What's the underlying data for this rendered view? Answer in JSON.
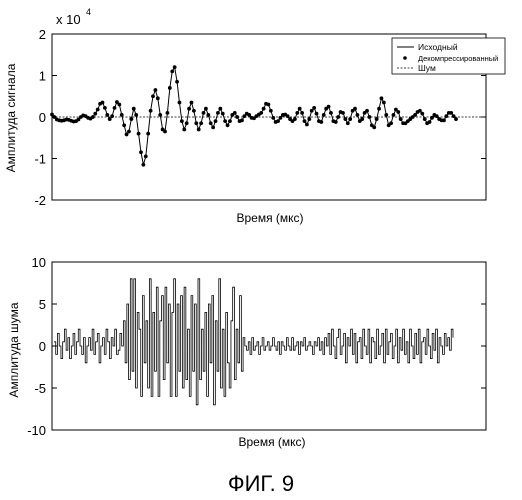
{
  "figure_caption": "ФИГ. 9",
  "chart_data": [
    {
      "type": "line",
      "exponent_label_base": "x 10",
      "exponent_label_power": "4",
      "xlabel": "Время (мкс)",
      "ylabel": "Амплитуда сигнала",
      "ylim": [
        -2,
        2
      ],
      "yticks": [
        "2",
        "1",
        "0",
        "-1",
        "-2"
      ],
      "ytick_values": [
        2,
        1,
        0,
        -1,
        -2
      ],
      "legend_position": "top-right",
      "legend": [
        {
          "label": "Исходный",
          "style": "solid"
        },
        {
          "label": "Декомпрессированный",
          "style": "dots"
        },
        {
          "label": "Шум",
          "style": "dashed"
        }
      ],
      "series": [
        {
          "name": "Исходный",
          "values": [
            0.06,
            0.0,
            -0.06,
            -0.08,
            -0.09,
            -0.08,
            -0.06,
            -0.07,
            -0.09,
            -0.11,
            -0.1,
            -0.06,
            0.0,
            0.04,
            0.02,
            -0.02,
            -0.04,
            0.0,
            0.08,
            0.18,
            0.32,
            0.35,
            0.22,
            0.05,
            -0.05,
            0.02,
            0.22,
            0.36,
            0.3,
            0.05,
            -0.2,
            -0.42,
            -0.35,
            -0.05,
            0.2,
            0.05,
            -0.4,
            -0.85,
            -1.15,
            -0.95,
            -0.4,
            0.15,
            0.5,
            0.65,
            0.45,
            0.05,
            -0.3,
            -0.35,
            0.1,
            0.7,
            1.1,
            1.2,
            0.85,
            0.35,
            -0.1,
            -0.3,
            -0.15,
            0.2,
            0.35,
            0.15,
            -0.15,
            -0.3,
            -0.15,
            0.1,
            0.2,
            0.05,
            -0.15,
            -0.25,
            -0.1,
            0.1,
            0.2,
            0.08,
            -0.1,
            -0.2,
            -0.1,
            0.05,
            0.1,
            0.0,
            -0.1,
            -0.08,
            0.02,
            0.08,
            0.05,
            -0.02,
            -0.03,
            0.02,
            0.06,
            0.1,
            0.2,
            0.32,
            0.3,
            0.15,
            -0.02,
            -0.12,
            -0.1,
            -0.02,
            0.05,
            0.06,
            0.02,
            -0.05,
            -0.1,
            -0.05,
            0.1,
            0.2,
            0.1,
            -0.1,
            -0.18,
            -0.05,
            0.15,
            0.22,
            0.08,
            -0.1,
            -0.12,
            0.05,
            0.2,
            0.25,
            0.1,
            -0.1,
            -0.12,
            0.0,
            0.12,
            0.1,
            -0.05,
            -0.15,
            -0.05,
            0.15,
            0.2,
            0.05,
            -0.1,
            -0.05,
            0.1,
            0.15,
            0.0,
            -0.2,
            -0.25,
            -0.05,
            0.2,
            0.45,
            0.35,
            0.05,
            -0.2,
            -0.15,
            0.05,
            0.18,
            0.12,
            -0.05,
            -0.15,
            -0.15,
            -0.1,
            -0.05,
            0.0,
            0.05,
            0.12,
            0.15,
            0.08,
            -0.05,
            -0.15,
            -0.12,
            -0.02,
            0.05,
            0.02,
            -0.05,
            -0.08,
            -0.08,
            0.02,
            0.1,
            0.1,
            0.02,
            -0.05
          ]
        },
        {
          "name": "Шум",
          "constant": 0
        }
      ]
    },
    {
      "type": "line",
      "xlabel": "Время (мкс)",
      "ylabel": "Амплитуда шума",
      "ylim": [
        -10,
        10
      ],
      "yticks": [
        "10",
        "5",
        "0",
        "-5",
        "-10"
      ],
      "ytick_values": [
        10,
        5,
        0,
        -5,
        -10
      ],
      "series": [
        {
          "values": [
            0.5,
            -1,
            1.5,
            0,
            -1.5,
            0.5,
            2,
            -0.5,
            1,
            -1.5,
            0,
            1.5,
            -1,
            0.5,
            2,
            0,
            -1,
            1,
            -2,
            0,
            1,
            -0.5,
            2,
            -1,
            0.5,
            1.5,
            -2,
            0,
            1,
            -1,
            2,
            0.5,
            -1.5,
            1,
            0,
            2,
            -1,
            -0.5,
            1.5,
            0,
            3,
            -2,
            5,
            -4,
            8,
            -3,
            8,
            -5,
            4,
            2,
            -6,
            6,
            -2,
            3,
            -5,
            8,
            -6,
            4,
            -3,
            7,
            -6,
            3,
            6,
            -4,
            7,
            -2,
            5,
            -6,
            4,
            8,
            -6,
            5,
            -3,
            6,
            -5,
            7,
            -4,
            2,
            -6,
            6,
            -3,
            5,
            -7,
            8,
            -4,
            2,
            -3,
            4,
            -6,
            5,
            -2,
            6,
            -7,
            3,
            -3,
            8,
            -5,
            2,
            -6,
            4,
            -2,
            -5,
            3,
            7,
            -4,
            2,
            -2,
            6,
            -3,
            1,
            0,
            -0.5,
            0.5,
            -1,
            1,
            -0.5,
            0,
            0.5,
            -1,
            0,
            1,
            -0.5,
            0,
            0.5,
            -0.5,
            0,
            1,
            0,
            -0.5,
            0.5,
            -1,
            0.5,
            0,
            -0.5,
            1,
            0,
            -0.5,
            1,
            -0.5,
            0,
            0.5,
            -1,
            0.5,
            0,
            1,
            -0.5,
            0,
            0.5,
            0,
            -1,
            0.5,
            0,
            1,
            -0.5,
            0.5,
            -1,
            1,
            0,
            1.5,
            -1,
            2,
            0,
            -1.5,
            1,
            2,
            -1,
            0,
            1.5,
            -2,
            1,
            0,
            2,
            -1,
            1.5,
            -2,
            0.5,
            1,
            -1.5,
            2,
            0,
            -1,
            2,
            -2,
            1,
            0.5,
            -1.5,
            2,
            -1,
            0,
            1.5,
            -2,
            2,
            -1,
            0.5,
            1.5,
            -1.5,
            0,
            2,
            -2,
            1,
            -0.5,
            2,
            -1,
            0.5,
            -2,
            2,
            0,
            -1.5,
            1.5,
            -1,
            2,
            -2,
            0.5,
            1,
            -1,
            2,
            0,
            -1.5,
            1.5,
            -0.5,
            2,
            -2,
            1,
            0,
            -1,
            1.5,
            0,
            1,
            -0.5,
            2,
            1
          ]
        }
      ]
    }
  ]
}
